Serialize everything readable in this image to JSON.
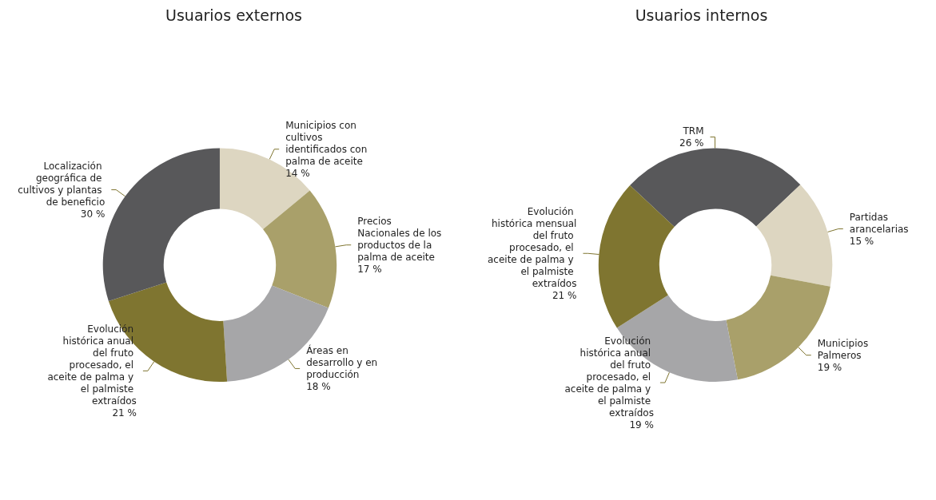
{
  "chart_data": [
    {
      "type": "donut",
      "title": "Usuarios externos",
      "categories": [
        "Municipios con cultivos identificados con palma de aceite",
        "Precios Nacionales de los productos de la palma de aceite",
        "Áreas en desarrollo y en producción",
        "Evolución histórica anual del fruto procesado, el aceite de palma y el palmiste extraídos",
        "Localización geográfica de cultivos y plantas de beneficio"
      ],
      "values": [
        14,
        17,
        18,
        21,
        30
      ],
      "value_labels": [
        "14 %",
        "17 %",
        "18 %",
        "21 %",
        "30 %"
      ],
      "colors": [
        "#ddd6c1",
        "#a9a06a",
        "#a6a6a8",
        "#7f7530",
        "#58585a"
      ]
    },
    {
      "type": "donut",
      "title": "Usuarios internos",
      "categories": [
        "TRM",
        "Partidas arancelarias",
        "Municipios Palmeros",
        "Evolución histórica anual del fruto procesado, el aceite de palma y el palmiste extraídos",
        "Evolución histórica mensual del fruto procesado, el aceite de palma y el palmiste extraídos"
      ],
      "values": [
        26,
        15,
        19,
        19,
        21
      ],
      "value_labels": [
        "26 %",
        "15 %",
        "19 %",
        "19 %",
        "21 %"
      ],
      "colors": [
        "#58585a",
        "#ddd6c1",
        "#a9a06a",
        "#a6a6a8",
        "#7f7530"
      ]
    }
  ]
}
